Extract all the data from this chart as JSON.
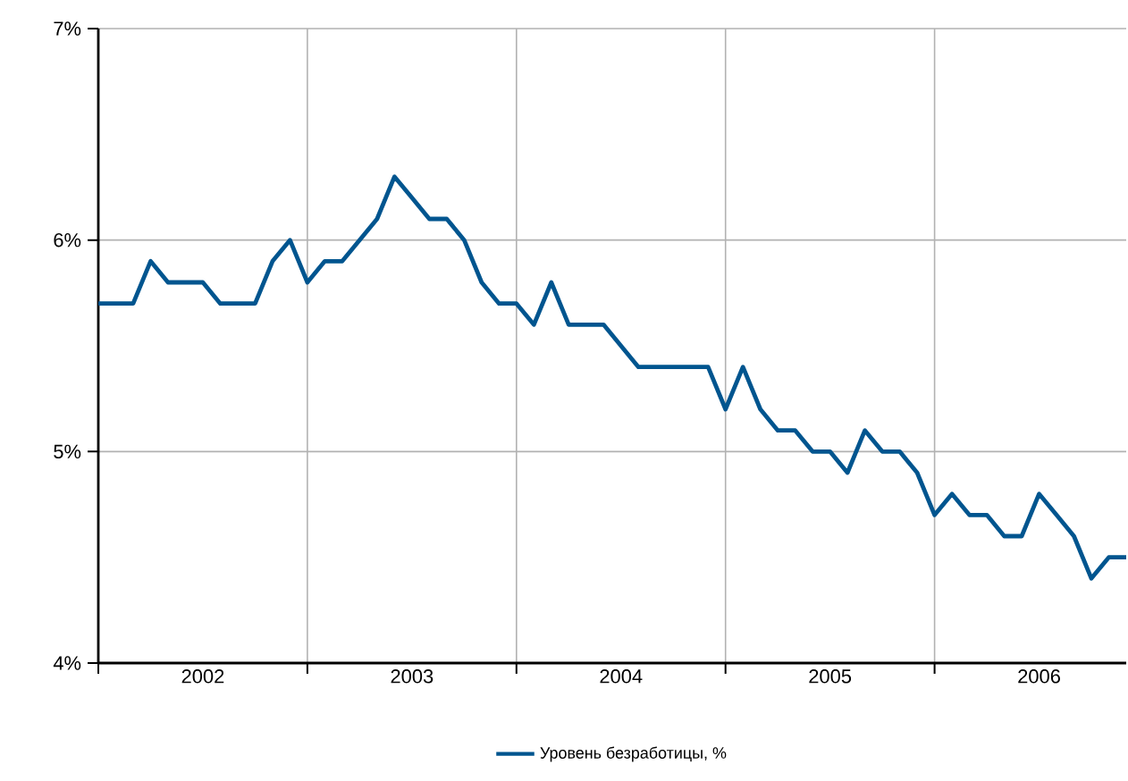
{
  "chart_data": {
    "type": "line",
    "x": [
      "2002-01",
      "2002-02",
      "2002-03",
      "2002-04",
      "2002-05",
      "2002-06",
      "2002-07",
      "2002-08",
      "2002-09",
      "2002-10",
      "2002-11",
      "2002-12",
      "2003-01",
      "2003-02",
      "2003-03",
      "2003-04",
      "2003-05",
      "2003-06",
      "2003-07",
      "2003-08",
      "2003-09",
      "2003-10",
      "2003-11",
      "2003-12",
      "2004-01",
      "2004-02",
      "2004-03",
      "2004-04",
      "2004-05",
      "2004-06",
      "2004-07",
      "2004-08",
      "2004-09",
      "2004-10",
      "2004-11",
      "2004-12",
      "2005-01",
      "2005-02",
      "2005-03",
      "2005-04",
      "2005-05",
      "2005-06",
      "2005-07",
      "2005-08",
      "2005-09",
      "2005-10",
      "2005-11",
      "2005-12",
      "2006-01",
      "2006-02",
      "2006-03",
      "2006-04",
      "2006-05",
      "2006-06",
      "2006-07",
      "2006-08",
      "2006-09",
      "2006-10",
      "2006-11",
      "2006-12"
    ],
    "series": [
      {
        "name": "Уровень безработицы, %",
        "color": "#00558f",
        "values": [
          5.7,
          5.7,
          5.7,
          5.9,
          5.8,
          5.8,
          5.8,
          5.7,
          5.7,
          5.7,
          5.9,
          6.0,
          5.8,
          5.9,
          5.9,
          6.0,
          6.1,
          6.3,
          6.2,
          6.1,
          6.1,
          6.0,
          5.8,
          5.7,
          5.7,
          5.6,
          5.8,
          5.6,
          5.6,
          5.6,
          5.5,
          5.4,
          5.4,
          5.4,
          5.4,
          5.4,
          5.2,
          5.4,
          5.2,
          5.1,
          5.1,
          5.0,
          5.0,
          4.9,
          5.1,
          5.0,
          5.0,
          4.9,
          4.7,
          4.8,
          4.7,
          4.7,
          4.6,
          4.6,
          4.8,
          4.7,
          4.6,
          4.4,
          4.5,
          4.5
        ]
      }
    ],
    "xlim": [
      "2002-01",
      "2006-12"
    ],
    "xticks": [
      {
        "value": "2002-01",
        "label": null
      },
      {
        "value": "2002-07",
        "label": "2002"
      },
      {
        "value": "2003-01",
        "label": null
      },
      {
        "value": "2003-07",
        "label": "2003"
      },
      {
        "value": "2004-01",
        "label": null
      },
      {
        "value": "2004-07",
        "label": "2004"
      },
      {
        "value": "2005-01",
        "label": null
      },
      {
        "value": "2005-07",
        "label": "2005"
      },
      {
        "value": "2006-01",
        "label": null
      },
      {
        "value": "2006-07",
        "label": "2006"
      }
    ],
    "ylim": [
      4,
      7
    ],
    "yticks": [
      {
        "value": 4,
        "label": "4%"
      },
      {
        "value": 5,
        "label": "5%"
      },
      {
        "value": 6,
        "label": "6%"
      },
      {
        "value": 7,
        "label": "7%"
      }
    ],
    "grid": true,
    "legend": "bottom",
    "marker": "none",
    "line_style": "solid"
  }
}
